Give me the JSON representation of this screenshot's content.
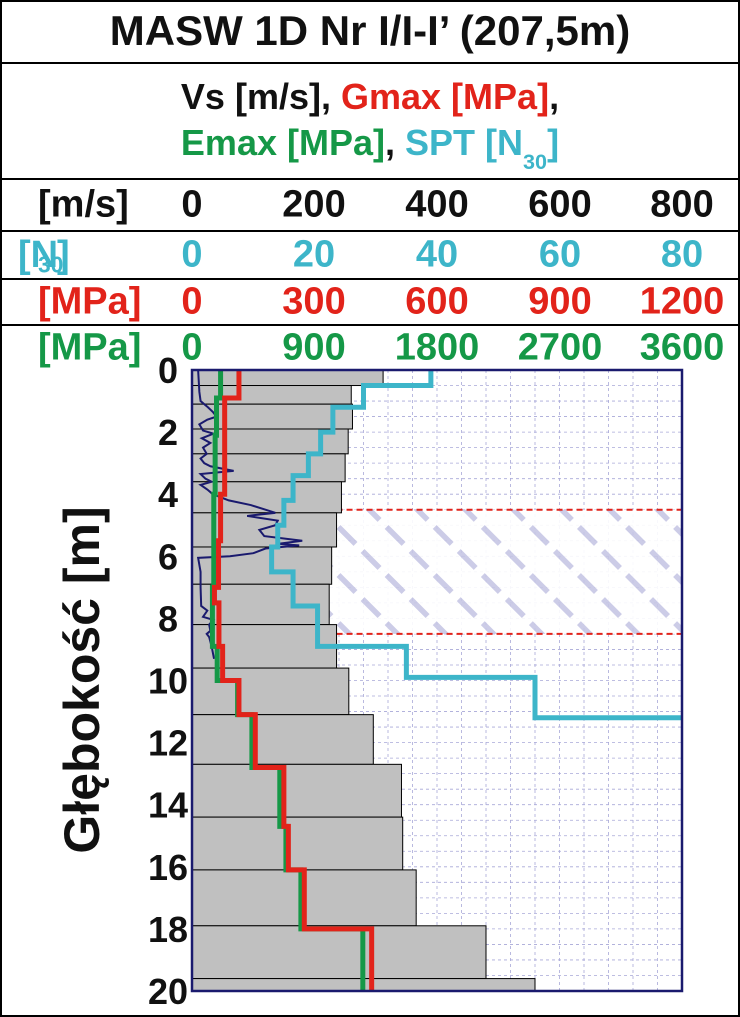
{
  "title": "MASW 1D Nr I/I-I’ (207,5m)",
  "legend": {
    "vs": "Vs [m/s]",
    "gmax": "Gmax [MPa]",
    "emax": "Emax [MPa]",
    "spt_prefix": "SPT [N",
    "spt_sub": "30",
    "spt_suffix": "]",
    "comma": ","
  },
  "scales": {
    "vs": {
      "unit": "[m/s]",
      "ticks": [
        "0",
        "200",
        "400",
        "600",
        "800"
      ]
    },
    "spt": {
      "unit_prefix": "[N",
      "unit_sub": "30",
      "unit_suffix": "]",
      "ticks": [
        "0",
        "20",
        "40",
        "60",
        "80"
      ]
    },
    "gmax": {
      "unit": "[MPa]",
      "ticks": [
        "0",
        "300",
        "600",
        "900",
        "1200"
      ]
    },
    "emax": {
      "unit": "[MPa]",
      "ticks": [
        "0",
        "900",
        "1800",
        "2700",
        "3600"
      ]
    }
  },
  "colors": {
    "vs_fill": "#c0c0c0",
    "gmax": "#e2231a",
    "emax": "#159847",
    "spt": "#3db5c9",
    "cpt_trace": "#1a1a6e",
    "frame": "#1a1a6e",
    "grid": "#a8a8d8",
    "hatch_boundary": "#e2231a",
    "hatch": "#c6c6e4"
  },
  "chart_data": {
    "type": "line",
    "ylabel": "Głębokość [m]",
    "ylim": [
      0,
      20
    ],
    "y_inverted": true,
    "y_ticks": [
      0,
      2,
      4,
      6,
      8,
      10,
      12,
      14,
      16,
      18,
      20
    ],
    "xlim": [
      0,
      800
    ],
    "x_ticks": [
      0,
      200,
      400,
      600,
      800
    ],
    "grid": true,
    "vs_layers": [
      {
        "top": 0.0,
        "bottom": 0.5,
        "vs": 312
      },
      {
        "top": 0.5,
        "bottom": 1.1,
        "vs": 260
      },
      {
        "top": 1.1,
        "bottom": 1.9,
        "vs": 262
      },
      {
        "top": 1.9,
        "bottom": 2.7,
        "vs": 255
      },
      {
        "top": 2.7,
        "bottom": 3.6,
        "vs": 250
      },
      {
        "top": 3.6,
        "bottom": 4.6,
        "vs": 244
      },
      {
        "top": 4.6,
        "bottom": 5.7,
        "vs": 236
      },
      {
        "top": 5.7,
        "bottom": 6.9,
        "vs": 228
      },
      {
        "top": 6.9,
        "bottom": 8.2,
        "vs": 224
      },
      {
        "top": 8.2,
        "bottom": 9.6,
        "vs": 236
      },
      {
        "top": 9.6,
        "bottom": 11.1,
        "vs": 256
      },
      {
        "top": 11.1,
        "bottom": 12.7,
        "vs": 296
      },
      {
        "top": 12.7,
        "bottom": 14.4,
        "vs": 342
      },
      {
        "top": 14.4,
        "bottom": 16.1,
        "vs": 344
      },
      {
        "top": 16.1,
        "bottom": 17.9,
        "vs": 366
      },
      {
        "top": 17.9,
        "bottom": 19.6,
        "vs": 480
      },
      {
        "top": 19.6,
        "bottom": 20.0,
        "vs": 560
      }
    ],
    "series": [
      {
        "name": "Gmax [MPa]",
        "x_scale_max": 1200,
        "steps": [
          {
            "top": 0.0,
            "bottom": 0.9,
            "value": 115
          },
          {
            "top": 0.9,
            "bottom": 4.0,
            "value": 80
          },
          {
            "top": 4.0,
            "bottom": 5.5,
            "value": 70
          },
          {
            "top": 5.5,
            "bottom": 7.0,
            "value": 65
          },
          {
            "top": 7.0,
            "bottom": 7.5,
            "value": 55
          },
          {
            "top": 7.5,
            "bottom": 8.9,
            "value": 66
          },
          {
            "top": 8.9,
            "bottom": 10.0,
            "value": 75
          },
          {
            "top": 10.0,
            "bottom": 11.1,
            "value": 115
          },
          {
            "top": 11.1,
            "bottom": 12.8,
            "value": 155
          },
          {
            "top": 12.8,
            "bottom": 14.7,
            "value": 225
          },
          {
            "top": 14.7,
            "bottom": 16.1,
            "value": 236
          },
          {
            "top": 16.1,
            "bottom": 18.0,
            "value": 275
          },
          {
            "top": 18.0,
            "bottom": 20.0,
            "value": 440
          }
        ]
      },
      {
        "name": "Emax [MPa]",
        "x_scale_max": 3600,
        "steps": [
          {
            "top": 0.0,
            "bottom": 0.9,
            "value": 210
          },
          {
            "top": 0.9,
            "bottom": 2.1,
            "value": 180
          },
          {
            "top": 2.1,
            "bottom": 4.0,
            "value": 170
          },
          {
            "top": 4.0,
            "bottom": 7.0,
            "value": 160
          },
          {
            "top": 7.0,
            "bottom": 8.9,
            "value": 150
          },
          {
            "top": 8.9,
            "bottom": 10.0,
            "value": 185
          },
          {
            "top": 10.0,
            "bottom": 11.1,
            "value": 335
          },
          {
            "top": 11.1,
            "bottom": 12.8,
            "value": 440
          },
          {
            "top": 12.8,
            "bottom": 14.7,
            "value": 645
          },
          {
            "top": 14.7,
            "bottom": 16.1,
            "value": 690
          },
          {
            "top": 16.1,
            "bottom": 18.0,
            "value": 800
          },
          {
            "top": 18.0,
            "bottom": 20.0,
            "value": 1255
          }
        ]
      },
      {
        "name": "SPT [N30]",
        "x_scale_max": 80,
        "steps": [
          {
            "top": 0.0,
            "bottom": 0.5,
            "value": 39
          },
          {
            "top": 0.5,
            "bottom": 1.2,
            "value": 28
          },
          {
            "top": 1.2,
            "bottom": 2.0,
            "value": 23
          },
          {
            "top": 2.0,
            "bottom": 2.7,
            "value": 21
          },
          {
            "top": 2.7,
            "bottom": 3.4,
            "value": 19
          },
          {
            "top": 3.4,
            "bottom": 4.2,
            "value": 16.5
          },
          {
            "top": 4.2,
            "bottom": 5.0,
            "value": 15
          },
          {
            "top": 5.0,
            "bottom": 5.7,
            "value": 14
          },
          {
            "top": 5.7,
            "bottom": 6.5,
            "value": 13
          },
          {
            "top": 6.5,
            "bottom": 7.6,
            "value": 16.5
          },
          {
            "top": 7.6,
            "bottom": 8.9,
            "value": 20.5
          },
          {
            "top": 8.9,
            "bottom": 9.9,
            "value": 35
          },
          {
            "top": 9.9,
            "bottom": 11.2,
            "value": 56
          },
          {
            "top": 11.2,
            "bottom": 11.2,
            "value": 80
          }
        ]
      },
      {
        "name": "CPT trace",
        "x_scale_max": 800,
        "points": [
          [
            10,
            0.0
          ],
          [
            12,
            0.7
          ],
          [
            14,
            1.0
          ],
          [
            26,
            1.2
          ],
          [
            34,
            1.35
          ],
          [
            40,
            1.5
          ],
          [
            25,
            1.6
          ],
          [
            12,
            1.75
          ],
          [
            18,
            1.95
          ],
          [
            35,
            2.05
          ],
          [
            16,
            2.2
          ],
          [
            30,
            2.35
          ],
          [
            18,
            2.5
          ],
          [
            24,
            2.7
          ],
          [
            14,
            2.85
          ],
          [
            20,
            3.0
          ],
          [
            30,
            3.1
          ],
          [
            68,
            3.25
          ],
          [
            14,
            3.35
          ],
          [
            22,
            3.5
          ],
          [
            32,
            3.6
          ],
          [
            14,
            3.7
          ],
          [
            25,
            3.85
          ],
          [
            34,
            4.0
          ],
          [
            60,
            4.2
          ],
          [
            96,
            4.35
          ],
          [
            120,
            4.5
          ],
          [
            136,
            4.6
          ],
          [
            90,
            4.7
          ],
          [
            140,
            4.85
          ],
          [
            136,
            5.0
          ],
          [
            110,
            5.15
          ],
          [
            118,
            5.35
          ],
          [
            180,
            5.5
          ],
          [
            140,
            5.6
          ],
          [
            175,
            5.65
          ],
          [
            120,
            5.75
          ],
          [
            100,
            5.9
          ],
          [
            62,
            6.0
          ],
          [
            10,
            6.05
          ],
          [
            14,
            6.5
          ],
          [
            14,
            7.0
          ],
          [
            15,
            7.6
          ],
          [
            25,
            7.75
          ],
          [
            18,
            7.95
          ],
          [
            35,
            8.05
          ],
          [
            28,
            8.2
          ],
          [
            30,
            8.4
          ],
          [
            24,
            8.5
          ],
          [
            28,
            8.6
          ],
          [
            32,
            8.9
          ],
          [
            35,
            9.2
          ],
          [
            36,
            9.3
          ]
        ]
      }
    ],
    "zone": {
      "top": 4.5,
      "bottom": 8.5
    }
  }
}
